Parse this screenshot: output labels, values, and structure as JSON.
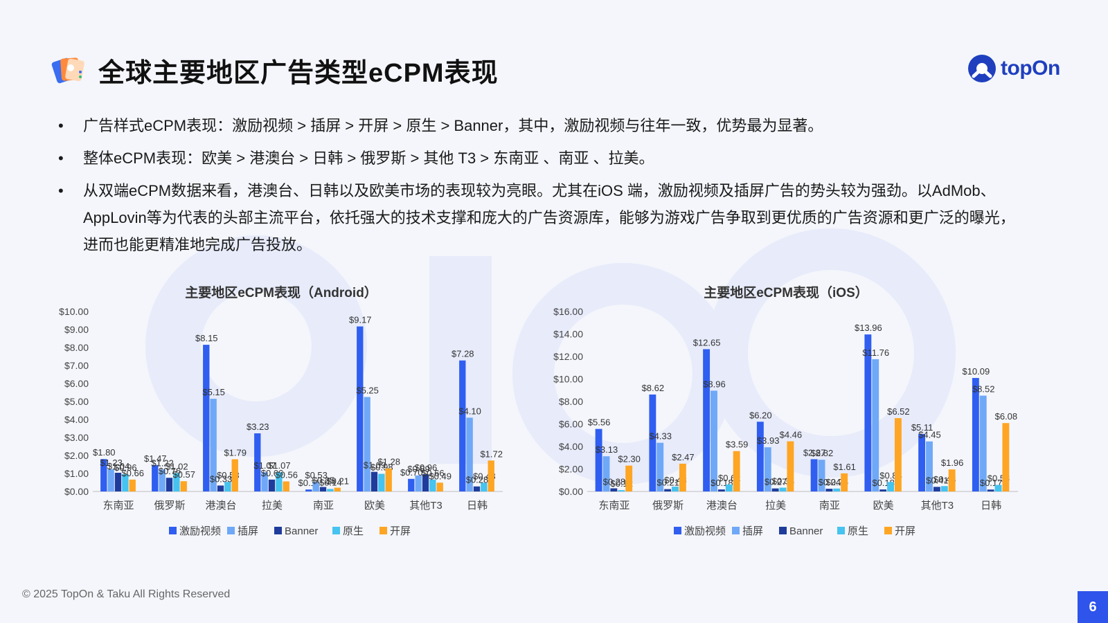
{
  "header": {
    "title": "全球主要地区广告类型eCPM表现",
    "brand": "topOn"
  },
  "bullets": [
    "广告样式eCPM表现：激励视频 > 插屏 > 开屏 > 原生 > Banner，其中，激励视频与往年一致，优势最为显著。",
    "整体eCPM表现：欧美 > 港澳台 > 日韩 > 俄罗斯 > 其他 T3 > 东南亚 、南亚 、拉美。",
    "从双端eCPM数据来看，港澳台、日韩以及欧美市场的表现较为亮眼。尤其在iOS 端，激励视频及插屏广告的势头较为强劲。以AdMob、AppLovin等为代表的头部主流平台，依托强大的技术支撑和庞大的广告资源库，能够为游戏广告争取到更优质的广告资源和更广泛的曝光，进而也能更精准地完成广告投放。"
  ],
  "bullet_symbol": "•",
  "footer": {
    "copyright": "© 2025 TopOn & Taku All Rights Reserved",
    "page": "6"
  },
  "colors": {
    "激励视频": "#2f5ef0",
    "插屏": "#6fa8f7",
    "Banner": "#1f3c9c",
    "原生": "#46c3ef",
    "开屏": "#ffa524"
  },
  "chart_data": [
    {
      "type": "bar",
      "title": "主要地区eCPM表现（Android）",
      "categories": [
        "东南亚",
        "俄罗斯",
        "港澳台",
        "拉美",
        "南亚",
        "欧美",
        "其他T3",
        "日韩"
      ],
      "ylim": [
        0,
        10
      ],
      "ytick_labels": [
        "$0.00",
        "$1.00",
        "$2.00",
        "$3.00",
        "$4.00",
        "$5.00",
        "$6.00",
        "$7.00",
        "$8.00",
        "$9.00",
        "$10.00"
      ],
      "grid": false,
      "legend": "bottom",
      "series": [
        {
          "name": "激励视频",
          "values": [
            1.8,
            1.47,
            8.15,
            3.23,
            0.11,
            9.17,
            0.7,
            7.28
          ],
          "labels": [
            "$1.80",
            "$1.47",
            "$8.15",
            "$3.23",
            "$0.11",
            "$9.17",
            "$0.70",
            "$7.28"
          ]
        },
        {
          "name": "插屏",
          "values": [
            1.23,
            1.22,
            5.15,
            1.07,
            0.53,
            5.25,
            0.89,
            4.1
          ],
          "labels": [
            "$1.23",
            "$1.22",
            "$5.15",
            "$1.07",
            "$0.53",
            "$5.25",
            "$0.89",
            "$4.10"
          ]
        },
        {
          "name": "Banner",
          "values": [
            1.04,
            0.76,
            0.33,
            0.66,
            0.25,
            1.09,
            0.96,
            0.28
          ],
          "labels": [
            "$1.04",
            "$0.76",
            "$0.33",
            "$0.66",
            "$0.25",
            "$1.09",
            "$0.96",
            "$0.28"
          ]
        },
        {
          "name": "原生",
          "values": [
            0.96,
            1.02,
            0.53,
            1.07,
            0.14,
            0.98,
            0.66,
            0.48
          ],
          "labels": [
            "$0.96",
            "$1.02",
            "$0.53",
            "$1.07",
            "$0.14",
            "$0.98",
            "$0.66",
            "$0.48"
          ]
        },
        {
          "name": "开屏",
          "values": [
            0.66,
            0.57,
            1.79,
            0.56,
            0.21,
            1.28,
            0.49,
            1.72
          ],
          "labels": [
            "$0.66",
            "$0.57",
            "$1.79",
            "$0.56",
            "$0.21",
            "$1.28",
            "$0.49",
            "$1.72"
          ]
        }
      ]
    },
    {
      "type": "bar",
      "title": "主要地区eCPM表现（iOS）",
      "categories": [
        "东南亚",
        "俄罗斯",
        "港澳台",
        "拉美",
        "南亚",
        "欧美",
        "其他T3",
        "日韩"
      ],
      "ylim": [
        0,
        16
      ],
      "ytick_labels": [
        "$0.00",
        "$2.00",
        "$4.00",
        "$6.00",
        "$8.00",
        "$10.00",
        "$12.00",
        "$14.00",
        "$16.00"
      ],
      "grid": false,
      "legend": "bottom",
      "series": [
        {
          "name": "激励视频",
          "values": [
            5.56,
            8.62,
            12.65,
            6.2,
            2.87,
            13.96,
            5.11,
            10.09
          ],
          "labels": [
            "$5.56",
            "$8.62",
            "$12.65",
            "$6.20",
            "$2.87",
            "$13.96",
            "$5.11",
            "$10.09"
          ]
        },
        {
          "name": "插屏",
          "values": [
            3.13,
            4.33,
            8.96,
            3.93,
            2.82,
            11.76,
            4.45,
            8.52
          ],
          "labels": [
            "$3.13",
            "$4.33",
            "$8.96",
            "$3.93",
            "$2.82",
            "$11.76",
            "$4.45",
            "$8.52"
          ]
        },
        {
          "name": "Banner",
          "values": [
            0.28,
            0.21,
            0.18,
            0.27,
            0.24,
            0.18,
            0.41,
            0.17
          ],
          "labels": [
            "$0.28",
            "$0.21",
            "$0.18",
            "$0.27",
            "$0.24",
            "$0.18",
            "$0.41",
            "$0.17"
          ]
        },
        {
          "name": "原生",
          "values": [
            0.12,
            0.43,
            0.62,
            0.34,
            0.26,
            0.84,
            0.48,
            0.58
          ],
          "labels": [
            "$0.12",
            "$0.43",
            "$0.62",
            "$0.34",
            "$0.26",
            "$0.84",
            "$0.48",
            "$0.58"
          ]
        },
        {
          "name": "开屏",
          "values": [
            2.3,
            2.47,
            3.59,
            4.46,
            1.61,
            6.52,
            1.96,
            6.08
          ],
          "labels": [
            "$2.30",
            "$2.47",
            "$3.59",
            "$4.46",
            "$1.61",
            "$6.52",
            "$1.96",
            "$6.08"
          ]
        }
      ]
    }
  ]
}
